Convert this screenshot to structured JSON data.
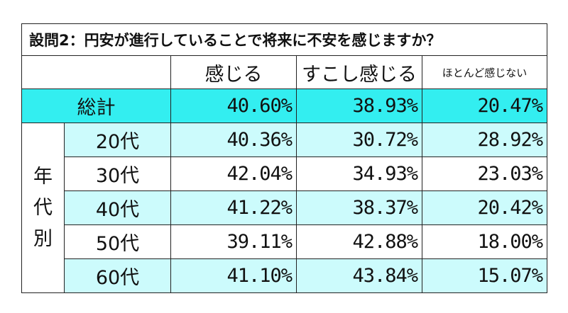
{
  "title": "設問2：円安が進行していることで将来に不安を感じますか？",
  "headers": [
    "感じる",
    "すこし感じる",
    "ほとんど感じない"
  ],
  "total": {
    "label": "総計",
    "values": [
      "40.60%",
      "38.93%",
      "20.47%"
    ]
  },
  "group_label": [
    "年",
    "代",
    "別"
  ],
  "rows": [
    {
      "label": "20代",
      "values": [
        "40.36%",
        "30.72%",
        "28.92%"
      ]
    },
    {
      "label": "30代",
      "values": [
        "42.04%",
        "34.93%",
        "23.03%"
      ]
    },
    {
      "label": "40代",
      "values": [
        "41.22%",
        "38.37%",
        "20.42%"
      ]
    },
    {
      "label": "50代",
      "values": [
        "39.11%",
        "42.88%",
        "18.00%"
      ]
    },
    {
      "label": "60代",
      "values": [
        "41.10%",
        "43.84%",
        "15.07%"
      ]
    }
  ],
  "colors": {
    "total_bg": "#33eef0",
    "light_bg": "#ccfbfc",
    "border": "#222222"
  }
}
